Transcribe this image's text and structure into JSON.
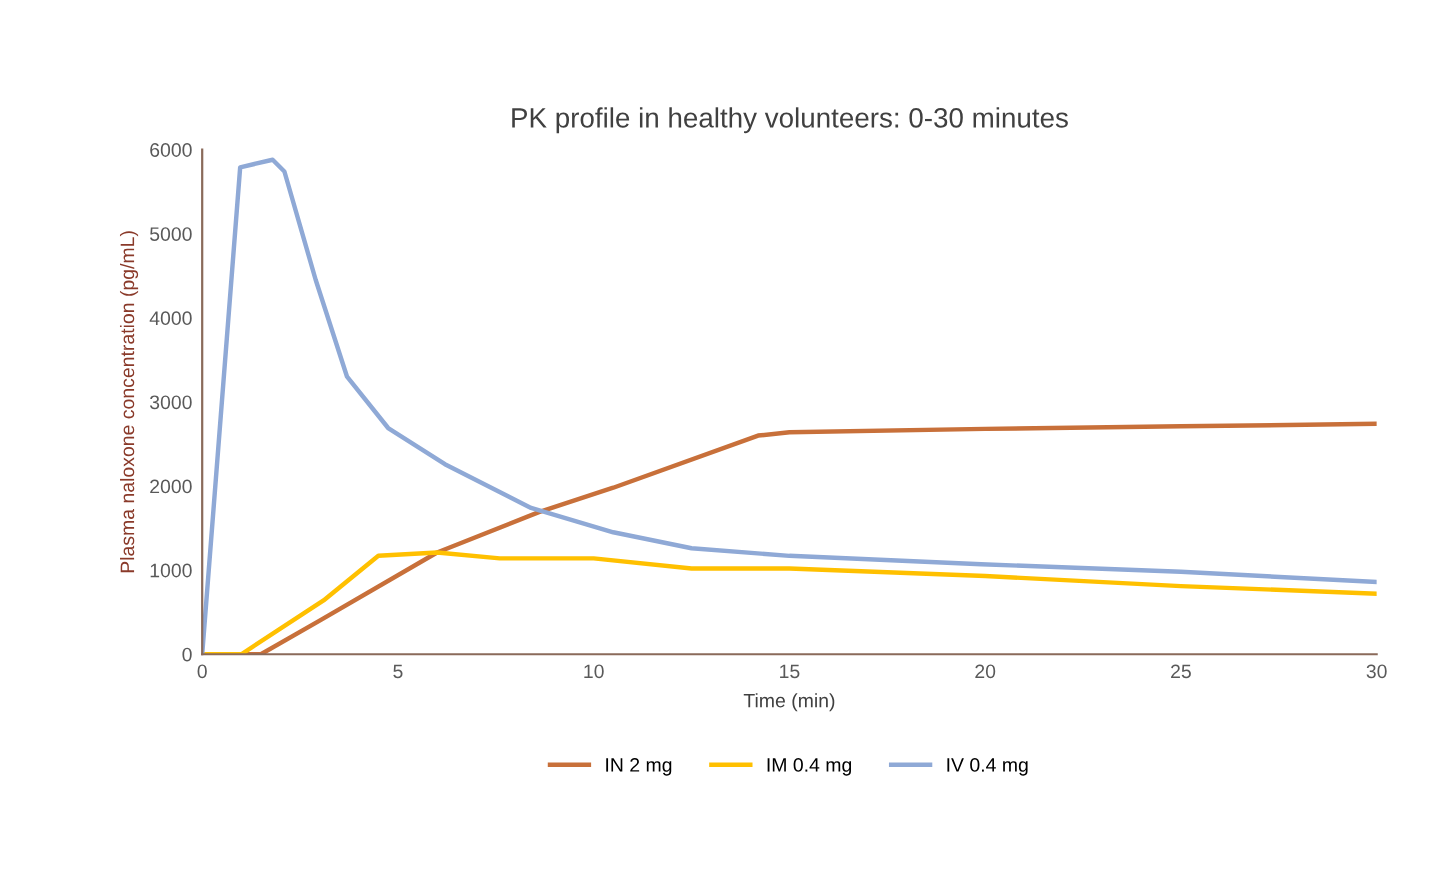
{
  "chart_data": {
    "type": "line",
    "title": "PK profile in healthy volunteers: 0-30 minutes",
    "xlabel": "Time (min)",
    "ylabel": "Plasma naloxone concentration (pg/mL)",
    "xlim": [
      0,
      30
    ],
    "xticks": [
      0,
      5,
      10,
      15,
      20,
      25,
      30
    ],
    "ylim": [
      0,
      6000
    ],
    "yticks": [
      0,
      1000,
      2000,
      3000,
      4000,
      5000,
      6000
    ],
    "grid": false,
    "legend": "bottom",
    "marker": "none",
    "line_style": "solid",
    "series": [
      {
        "name": "IN 2 mg",
        "color": "#c8703a",
        "x": [
          0,
          1,
          1.5,
          3,
          6,
          8.6,
          10.5,
          14.2,
          15,
          20,
          25,
          30
        ],
        "values": [
          0,
          0,
          0,
          400,
          1210,
          1690,
          1980,
          2600,
          2640,
          2680,
          2710,
          2740
        ]
      },
      {
        "name": "IM 0.4 mg",
        "color": "#ffc000",
        "x": [
          0,
          1,
          3.1,
          4.5,
          6,
          7.6,
          10,
          12.5,
          15,
          20,
          25,
          30
        ],
        "values": [
          0,
          0,
          640,
          1170,
          1210,
          1140,
          1140,
          1020,
          1020,
          930,
          810,
          720
        ]
      },
      {
        "name": "IV 0.4 mg",
        "color": "#8fa9d6",
        "x": [
          0,
          0.97,
          1.8,
          2.1,
          2.9,
          3.7,
          4.75,
          6.2,
          8.4,
          10.5,
          12.5,
          15,
          19.9,
          25,
          30
        ],
        "values": [
          0,
          5790,
          5880,
          5740,
          4450,
          3300,
          2690,
          2260,
          1740,
          1450,
          1260,
          1170,
          1070,
          980,
          860
        ]
      }
    ]
  }
}
